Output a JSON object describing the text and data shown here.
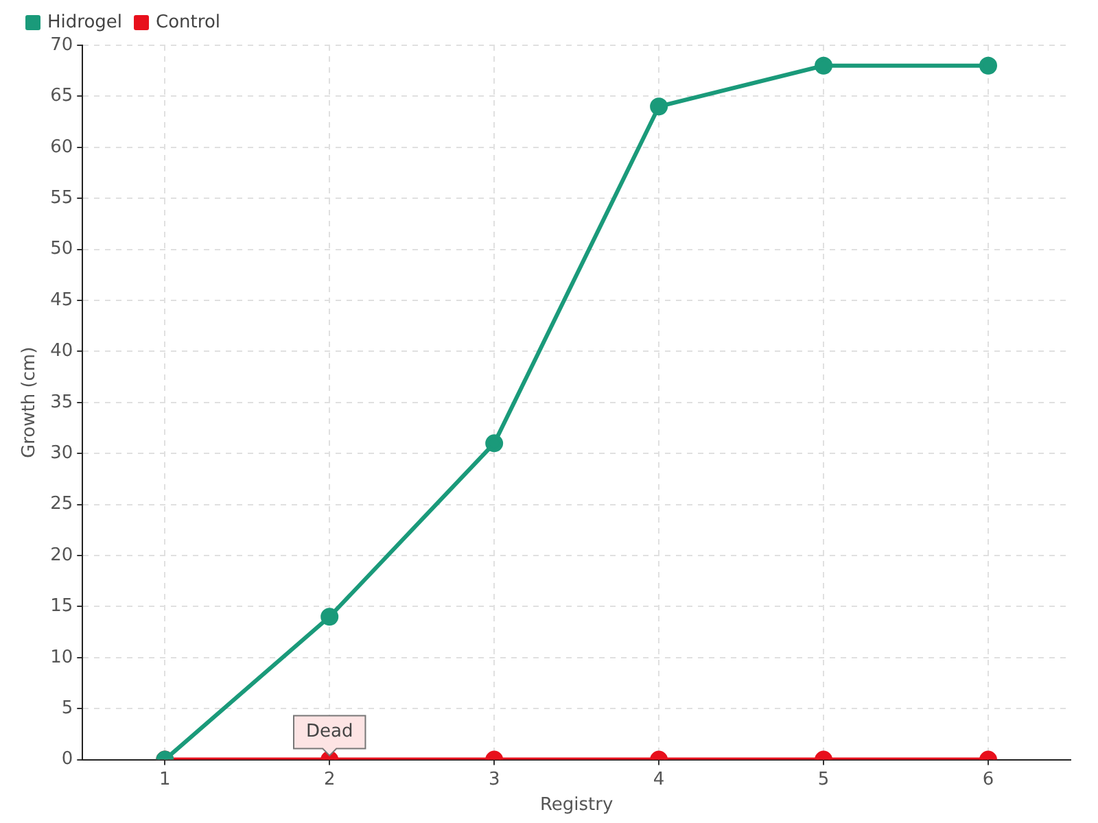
{
  "chart_data": {
    "type": "line",
    "xlabel": "Registry",
    "ylabel": "Growth (cm)",
    "x": [
      1,
      2,
      3,
      4,
      5,
      6
    ],
    "series": [
      {
        "name": "Hidrogel",
        "color": "#1a9a7a",
        "values": [
          0,
          14,
          31,
          64,
          68,
          68
        ]
      },
      {
        "name": "Control",
        "color": "#e8101c",
        "values": [
          0,
          0,
          0,
          0,
          0,
          0
        ]
      }
    ],
    "xlim": [
      0.5,
      6.5
    ],
    "xticks": [
      1,
      2,
      3,
      4,
      5,
      6
    ],
    "ylim": [
      0,
      70
    ],
    "yticks": [
      0,
      5,
      10,
      15,
      20,
      25,
      30,
      35,
      40,
      45,
      50,
      55,
      60,
      65,
      70
    ],
    "annotations": [
      {
        "text": "Dead",
        "x": 2,
        "y": 0
      }
    ],
    "grid": true,
    "legend": "top left",
    "marker": "circle",
    "line_style": "solid"
  }
}
